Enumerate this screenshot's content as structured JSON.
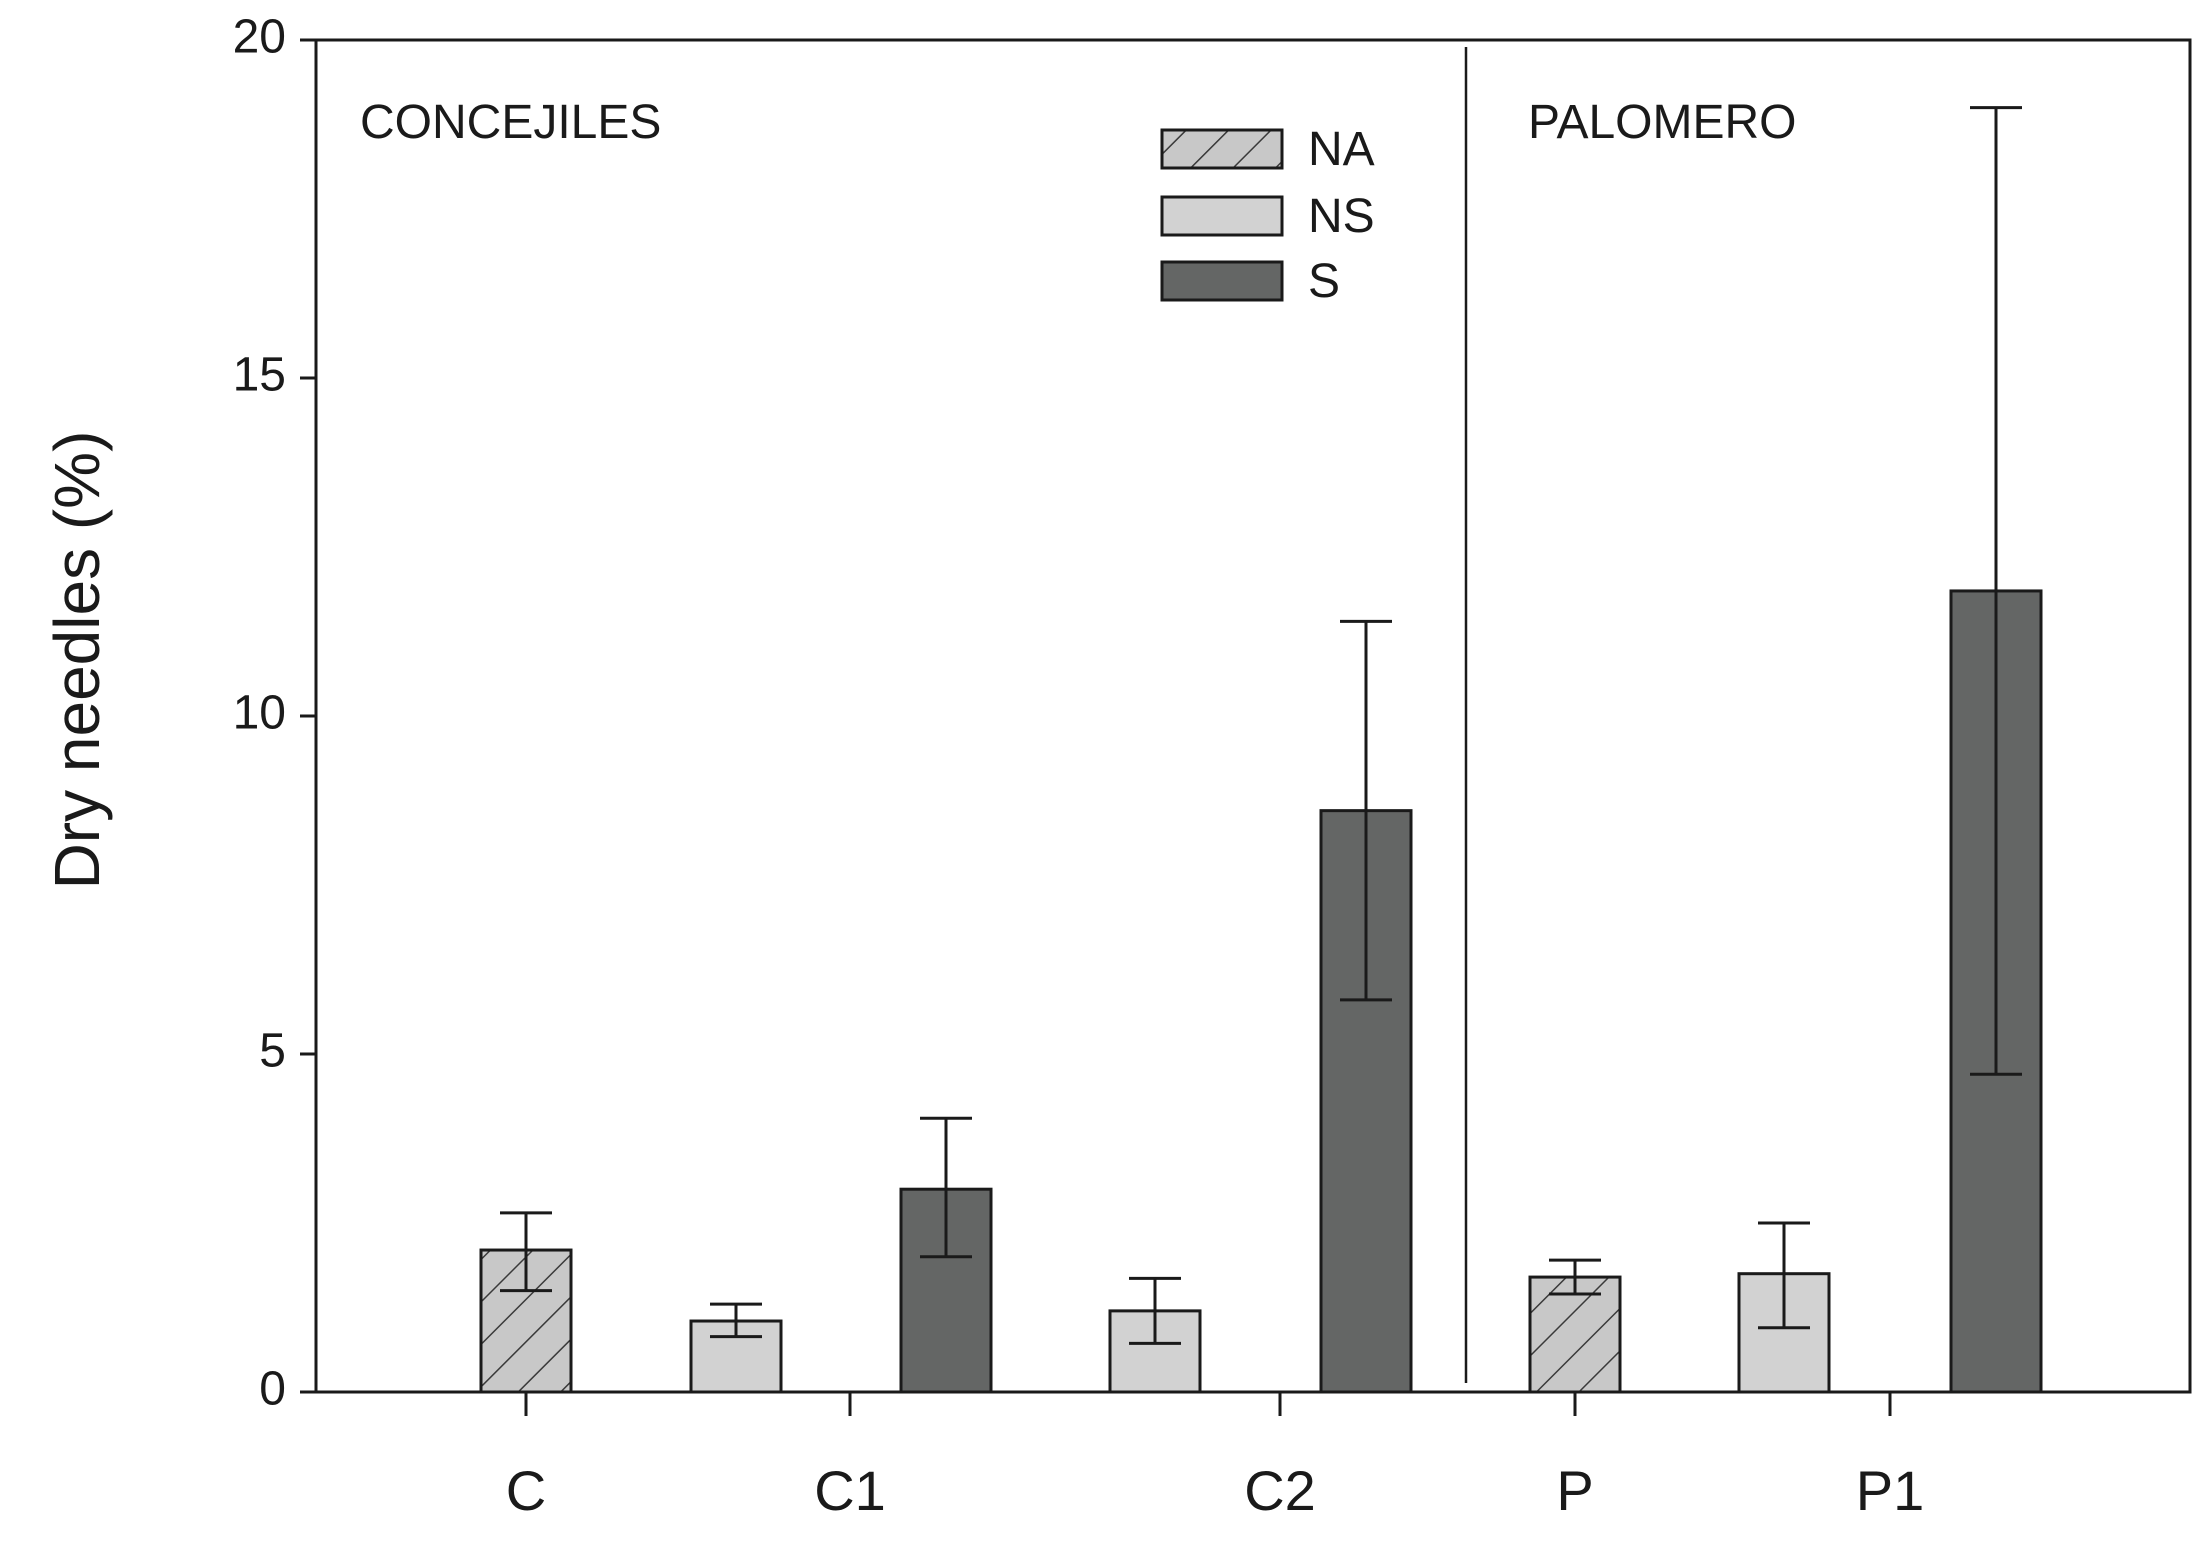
{
  "chart_data": {
    "type": "bar",
    "ylabel": "Dry needles (%)",
    "xlabel": "",
    "ylim": [
      0,
      20
    ],
    "yticks": [
      0,
      5,
      10,
      15,
      20
    ],
    "panels": [
      {
        "label": "CONCEJILES",
        "sites": [
          "C",
          "C1",
          "C2"
        ]
      },
      {
        "label": "PALOMERO",
        "sites": [
          "P",
          "P1"
        ]
      }
    ],
    "series": [
      {
        "name": "NA",
        "fill": "#c8c8c8",
        "hatch": true
      },
      {
        "name": "NS",
        "fill": "#d2d2d2",
        "hatch": false
      },
      {
        "name": "S",
        "fill": "#646665",
        "hatch": false
      }
    ],
    "categories": [
      "C",
      "C1",
      "C2",
      "P",
      "P1"
    ],
    "bars": [
      {
        "site": "C",
        "series": "NA",
        "value": 2.1,
        "err_low": 1.5,
        "err_high": 2.65
      },
      {
        "site": "C1",
        "series": "NS",
        "value": 1.05,
        "err_low": 0.82,
        "err_high": 1.3
      },
      {
        "site": "C1",
        "series": "S",
        "value": 3.0,
        "err_low": 2.0,
        "err_high": 4.05
      },
      {
        "site": "C2",
        "series": "NS",
        "value": 1.2,
        "err_low": 0.72,
        "err_high": 1.68
      },
      {
        "site": "C2",
        "series": "S",
        "value": 8.6,
        "err_low": 5.8,
        "err_high": 11.4
      },
      {
        "site": "P",
        "series": "NA",
        "value": 1.7,
        "err_low": 1.45,
        "err_high": 1.95
      },
      {
        "site": "P1",
        "series": "NS",
        "value": 1.75,
        "err_low": 0.95,
        "err_high": 2.5
      },
      {
        "site": "P1",
        "series": "S",
        "value": 11.85,
        "err_low": 4.7,
        "err_high": 19.0
      }
    ],
    "legend": {
      "position": "top-center",
      "entries": [
        "NA",
        "NS",
        "S"
      ]
    }
  }
}
